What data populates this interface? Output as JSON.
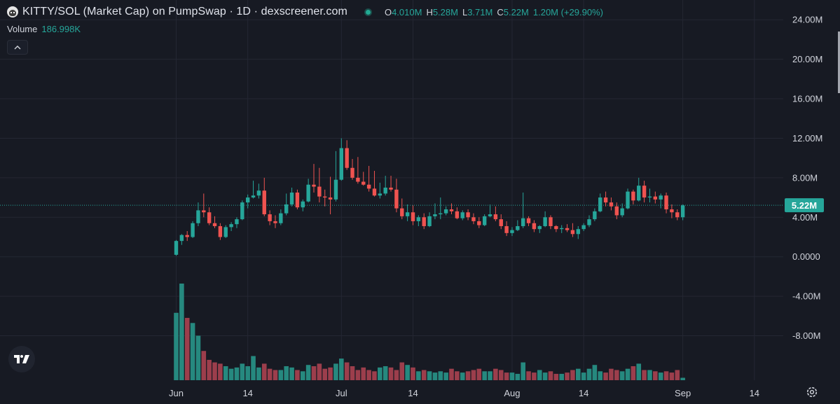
{
  "header": {
    "title": "KITTY/SOL (Market Cap) on PumpSwap · 1D · dexscreener.com",
    "ohlc": {
      "open_label": "O",
      "open_value": "4.010M",
      "high_label": "H",
      "high_value": "5.28M",
      "low_label": "L",
      "low_value": "3.71M",
      "close_label": "C",
      "close_value": "5.22M",
      "change": "1.20M (+29.90%)"
    },
    "volume_label": "Volume",
    "volume_value": "186.998K"
  },
  "colors": {
    "background": "#171a23",
    "grid": "#242733",
    "up": "#26a69a",
    "down": "#ef5350",
    "volume_up": "#26897f",
    "volume_down": "#9c3e4c",
    "text": "#d1d4dc",
    "last_price_badge": "#26a69a"
  },
  "icons": {
    "collapse": "chevron-up-icon",
    "logo": "tradingview-logo",
    "settings": "gear-icon"
  },
  "chart_data": {
    "type": "candlestick",
    "unit": "M",
    "ylim": [
      -12.5,
      26
    ],
    "y_ticks": [
      24,
      20,
      16,
      12,
      8,
      4,
      0,
      -4,
      -8
    ],
    "y_tick_labels": [
      "24.00M",
      "20.00M",
      "16.00M",
      "12.00M",
      "8.00M",
      "4.00M",
      "0.0000",
      "-4.00M",
      "-8.00M"
    ],
    "x_ticks": [
      {
        "day": 1,
        "label": "Jun"
      },
      {
        "day": 14,
        "label": "14"
      },
      {
        "day": 31,
        "label": "Jul"
      },
      {
        "day": 44,
        "label": "14"
      },
      {
        "day": 62,
        "label": "Aug"
      },
      {
        "day": 75,
        "label": "14"
      },
      {
        "day": 93,
        "label": "Sep"
      },
      {
        "day": 106,
        "label": "14"
      }
    ],
    "x_axis_start": "May 31",
    "last_price_label": "5.22M",
    "last_price": 5.22,
    "grid": true,
    "candles": [
      [
        0.2,
        1.7,
        0.1,
        1.6,
        5.3
      ],
      [
        1.6,
        2.3,
        1.2,
        2.2,
        7.6
      ],
      [
        2.2,
        2.6,
        1.6,
        2.0,
        4.9
      ],
      [
        2.0,
        3.6,
        1.9,
        3.4,
        4.5
      ],
      [
        3.4,
        5.5,
        3.1,
        4.7,
        3.5
      ],
      [
        4.7,
        6.4,
        4.0,
        4.5,
        2.3
      ],
      [
        4.5,
        5.0,
        3.2,
        3.4,
        1.6
      ],
      [
        3.4,
        4.1,
        2.9,
        3.1,
        1.4
      ],
      [
        3.1,
        3.4,
        1.7,
        2.0,
        1.3
      ],
      [
        2.0,
        3.2,
        1.9,
        3.0,
        1.1
      ],
      [
        3.0,
        3.5,
        2.6,
        3.3,
        0.9
      ],
      [
        3.3,
        4.0,
        2.9,
        3.8,
        1.0
      ],
      [
        3.8,
        5.7,
        3.7,
        5.5,
        1.3
      ],
      [
        5.5,
        6.3,
        4.9,
        6.0,
        1.1
      ],
      [
        6.0,
        7.7,
        5.9,
        6.2,
        1.9
      ],
      [
        6.2,
        7.4,
        5.9,
        6.7,
        1.0
      ],
      [
        6.7,
        8.0,
        4.1,
        4.3,
        1.3
      ],
      [
        4.3,
        4.7,
        3.2,
        3.6,
        0.9
      ],
      [
        3.6,
        4.2,
        2.9,
        3.4,
        0.8
      ],
      [
        3.4,
        4.8,
        3.2,
        4.4,
        0.8
      ],
      [
        4.4,
        6.4,
        4.2,
        5.3,
        1.1
      ],
      [
        5.3,
        7.0,
        5.1,
        6.5,
        1.0
      ],
      [
        6.5,
        6.8,
        4.8,
        5.0,
        0.8
      ],
      [
        5.0,
        5.8,
        4.6,
        5.6,
        0.7
      ],
      [
        5.6,
        7.9,
        5.5,
        7.3,
        1.2
      ],
      [
        7.3,
        9.4,
        6.5,
        7.1,
        1.1
      ],
      [
        7.1,
        9.0,
        5.5,
        6.1,
        1.3
      ],
      [
        6.1,
        6.8,
        5.1,
        6.0,
        0.9
      ],
      [
        6.0,
        8.1,
        4.3,
        5.8,
        1.0
      ],
      [
        5.8,
        10.7,
        5.6,
        7.8,
        1.3
      ],
      [
        7.8,
        12.0,
        7.7,
        11.0,
        1.7
      ],
      [
        11.0,
        11.8,
        8.8,
        9.0,
        1.4
      ],
      [
        9.0,
        9.9,
        7.8,
        8.0,
        1.1
      ],
      [
        8.0,
        10.1,
        7.4,
        7.6,
        0.8
      ],
      [
        7.6,
        8.6,
        7.2,
        7.3,
        1.0
      ],
      [
        7.3,
        9.2,
        6.6,
        6.9,
        0.8
      ],
      [
        6.9,
        8.7,
        6.1,
        6.2,
        0.7
      ],
      [
        6.2,
        7.5,
        5.9,
        6.4,
        1.0
      ],
      [
        6.4,
        8.2,
        6.2,
        7.0,
        1.1
      ],
      [
        7.0,
        8.2,
        6.6,
        6.8,
        1.0
      ],
      [
        6.8,
        7.9,
        4.5,
        4.9,
        0.8
      ],
      [
        4.9,
        5.9,
        3.8,
        4.1,
        1.4
      ],
      [
        4.1,
        5.3,
        3.6,
        4.5,
        1.2
      ],
      [
        4.5,
        5.2,
        3.2,
        3.6,
        1.0
      ],
      [
        3.6,
        4.2,
        3.1,
        4.0,
        0.7
      ],
      [
        4.0,
        4.4,
        2.8,
        3.1,
        0.8
      ],
      [
        3.1,
        4.5,
        3.0,
        4.1,
        0.7
      ],
      [
        4.1,
        5.4,
        3.8,
        4.3,
        0.6
      ],
      [
        4.3,
        6.0,
        3.8,
        4.4,
        0.7
      ],
      [
        4.4,
        5.1,
        4.2,
        4.8,
        0.6
      ],
      [
        4.8,
        5.4,
        4.3,
        4.6,
        0.9
      ],
      [
        4.6,
        5.0,
        3.8,
        3.9,
        0.7
      ],
      [
        3.9,
        4.7,
        3.7,
        4.5,
        0.6
      ],
      [
        4.5,
        4.8,
        3.7,
        4.0,
        0.7
      ],
      [
        4.0,
        4.4,
        3.3,
        3.6,
        0.8
      ],
      [
        3.6,
        4.0,
        2.9,
        3.2,
        0.9
      ],
      [
        3.2,
        4.3,
        3.1,
        4.1,
        0.7
      ],
      [
        4.1,
        5.3,
        4.0,
        4.3,
        0.7
      ],
      [
        4.3,
        5.1,
        3.6,
        3.8,
        0.9
      ],
      [
        3.8,
        4.3,
        2.8,
        3.1,
        0.8
      ],
      [
        3.1,
        3.6,
        2.1,
        2.4,
        0.6
      ],
      [
        2.4,
        3.0,
        2.1,
        2.7,
        0.6
      ],
      [
        2.7,
        3.7,
        2.6,
        3.1,
        0.5
      ],
      [
        3.1,
        6.5,
        2.9,
        3.9,
        1.4
      ],
      [
        3.9,
        4.1,
        3.1,
        3.4,
        0.7
      ],
      [
        3.4,
        3.7,
        2.5,
        2.8,
        0.6
      ],
      [
        2.8,
        3.2,
        2.4,
        3.1,
        0.8
      ],
      [
        3.1,
        4.6,
        3.0,
        4.0,
        0.6
      ],
      [
        4.0,
        4.2,
        2.8,
        3.1,
        0.7
      ],
      [
        3.1,
        3.2,
        2.5,
        2.8,
        0.5
      ],
      [
        2.8,
        3.2,
        2.4,
        2.9,
        0.5
      ],
      [
        2.9,
        3.3,
        2.5,
        2.7,
        0.6
      ],
      [
        2.7,
        3.4,
        2.0,
        2.3,
        0.8
      ],
      [
        2.3,
        3.1,
        1.8,
        2.8,
        0.9
      ],
      [
        2.8,
        3.4,
        2.6,
        3.2,
        0.6
      ],
      [
        3.2,
        4.2,
        3.0,
        3.8,
        0.9
      ],
      [
        3.8,
        4.9,
        3.6,
        4.6,
        1.2
      ],
      [
        4.6,
        6.4,
        4.5,
        6.0,
        0.7
      ],
      [
        6.0,
        6.6,
        5.1,
        5.5,
        0.6
      ],
      [
        5.5,
        6.0,
        4.7,
        5.1,
        0.9
      ],
      [
        5.1,
        5.5,
        3.8,
        4.2,
        0.8
      ],
      [
        4.2,
        5.4,
        4.0,
        4.9,
        0.7
      ],
      [
        4.9,
        6.9,
        4.8,
        6.6,
        0.9
      ],
      [
        6.6,
        6.8,
        5.3,
        5.7,
        1.1
      ],
      [
        5.7,
        8.0,
        5.6,
        7.2,
        1.3
      ],
      [
        7.2,
        7.7,
        5.5,
        6.0,
        0.8
      ],
      [
        6.0,
        6.9,
        5.5,
        6.1,
        0.8
      ],
      [
        6.1,
        6.6,
        5.4,
        5.8,
        0.7
      ],
      [
        5.8,
        6.4,
        4.9,
        6.2,
        0.6
      ],
      [
        6.2,
        6.5,
        4.4,
        4.8,
        0.7
      ],
      [
        4.8,
        5.3,
        3.9,
        4.5,
        0.6
      ],
      [
        4.5,
        4.8,
        3.7,
        4.0,
        0.8
      ],
      [
        4.0,
        5.3,
        3.7,
        5.2,
        0.19
      ]
    ]
  }
}
